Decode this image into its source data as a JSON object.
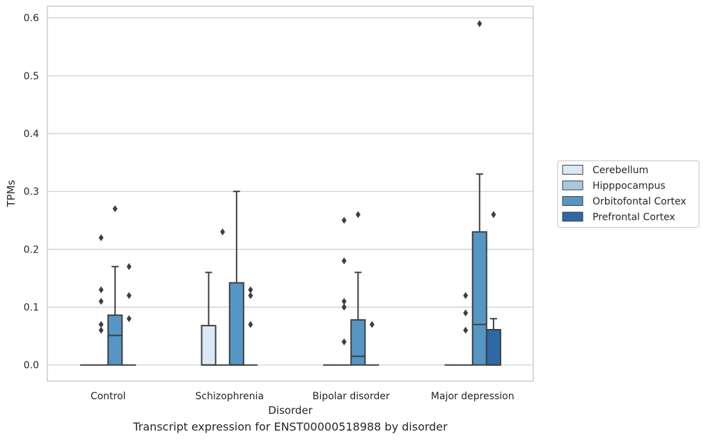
{
  "chart_data": {
    "type": "box",
    "caption": "Transcript expression for ENST00000518988 by disorder",
    "xlabel": "Disorder",
    "ylabel": "TPMs",
    "ylim": [
      -0.028,
      0.62
    ],
    "yticks": [
      0.0,
      0.1,
      0.2,
      0.3,
      0.4,
      0.5,
      0.6
    ],
    "ytick_labels": [
      "0.0",
      "0.1",
      "0.2",
      "0.3",
      "0.4",
      "0.5",
      "0.6"
    ],
    "grid": "horizontal",
    "legend_position": "right",
    "categories": [
      "Control",
      "Schizophrenia",
      "Bipolar disorder",
      "Major depression"
    ],
    "series": [
      {
        "name": "Cerebellum",
        "color": "#dbe9f6",
        "boxes": [
          {
            "q1": 0,
            "median": 0,
            "q3": 0,
            "whisker_low": 0,
            "whisker_high": 0,
            "outliers": []
          },
          {
            "q1": 0,
            "median": 0,
            "q3": 0.068,
            "whisker_low": 0,
            "whisker_high": 0.16,
            "outliers": []
          },
          {
            "q1": 0,
            "median": 0,
            "q3": 0,
            "whisker_low": 0,
            "whisker_high": 0,
            "outliers": []
          },
          {
            "q1": 0,
            "median": 0,
            "q3": 0,
            "whisker_low": 0,
            "whisker_high": 0,
            "outliers": []
          }
        ]
      },
      {
        "name": "Hipppocampus",
        "color": "#a6c8e0",
        "boxes": [
          {
            "q1": 0,
            "median": 0,
            "q3": 0,
            "whisker_low": 0,
            "whisker_high": 0,
            "outliers": [
              0.06,
              0.07,
              0.13,
              0.11,
              0.22
            ]
          },
          {
            "q1": 0,
            "median": 0,
            "q3": 0,
            "whisker_low": 0,
            "whisker_high": 0,
            "outliers": [
              0.23
            ]
          },
          {
            "q1": 0,
            "median": 0,
            "q3": 0,
            "whisker_low": 0,
            "whisker_high": 0,
            "outliers": [
              0.04,
              0.1,
              0.11,
              0.1,
              0.18,
              0.25
            ]
          },
          {
            "q1": 0,
            "median": 0,
            "q3": 0,
            "whisker_low": 0,
            "whisker_high": 0,
            "outliers": [
              0.06,
              0.09,
              0.12
            ]
          }
        ]
      },
      {
        "name": "Orbitofontal Cortex",
        "color": "#5696c4",
        "boxes": [
          {
            "q1": 0,
            "median": 0.051,
            "q3": 0.086,
            "whisker_low": 0,
            "whisker_high": 0.17,
            "outliers": [
              0.27
            ]
          },
          {
            "q1": 0,
            "median": 0,
            "q3": 0.142,
            "whisker_low": 0,
            "whisker_high": 0.3,
            "outliers": []
          },
          {
            "q1": 0,
            "median": 0.015,
            "q3": 0.078,
            "whisker_low": 0,
            "whisker_high": 0.16,
            "outliers": [
              0.26
            ]
          },
          {
            "q1": 0,
            "median": 0.07,
            "q3": 0.23,
            "whisker_low": 0,
            "whisker_high": 0.33,
            "outliers": [
              0.59
            ]
          }
        ]
      },
      {
        "name": "Prefrontal Cortex",
        "color": "#2d69a4",
        "boxes": [
          {
            "q1": 0,
            "median": 0,
            "q3": 0,
            "whisker_low": 0,
            "whisker_high": 0,
            "outliers": [
              0.08,
              0.12,
              0.17
            ]
          },
          {
            "q1": 0,
            "median": 0,
            "q3": 0,
            "whisker_low": 0,
            "whisker_high": 0,
            "outliers": [
              0.07,
              0.12,
              0.13
            ]
          },
          {
            "q1": 0,
            "median": 0,
            "q3": 0,
            "whisker_low": 0,
            "whisker_high": 0,
            "outliers": [
              0.07
            ]
          },
          {
            "q1": 0,
            "median": 0,
            "q3": 0.061,
            "whisker_low": 0,
            "whisker_high": 0.08,
            "outliers": [
              0.26
            ]
          }
        ]
      }
    ],
    "styles": {
      "grid_color": "#cccccc",
      "frame_color": "#cccccc",
      "box_edge_color": "#3f3f3f",
      "legend_edge_color": "#cccccc"
    }
  }
}
